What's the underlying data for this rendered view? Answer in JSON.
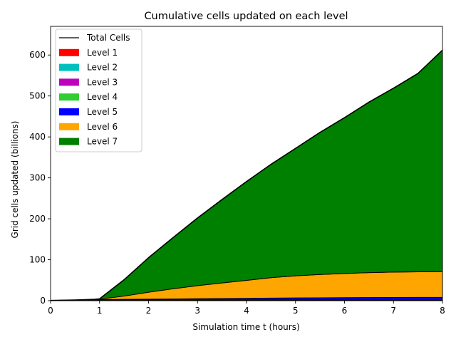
{
  "chart_data": {
    "type": "area",
    "title": "Cumulative cells updated on each level",
    "xlabel": "Simulation time t (hours)",
    "ylabel": "Grid cells updated (billions)",
    "xlim": [
      0,
      8
    ],
    "ylim": [
      0,
      670
    ],
    "xticks": [
      0,
      1,
      2,
      3,
      4,
      5,
      6,
      7,
      8
    ],
    "yticks": [
      0,
      100,
      200,
      300,
      400,
      500,
      600
    ],
    "grid": false,
    "legend_position": "top-left",
    "x": [
      0,
      0.5,
      0.9,
      1,
      1.5,
      2,
      2.5,
      3,
      3.5,
      4,
      4.5,
      5,
      5.5,
      6,
      6.5,
      7,
      7.5,
      8
    ],
    "series": [
      {
        "name": "Level 1",
        "color": "#ff0000",
        "values": [
          0.3,
          0.4,
          0.5,
          0.5,
          0.5,
          0.5,
          0.5,
          0.5,
          0.5,
          0.5,
          0.5,
          0.5,
          0.5,
          0.5,
          0.5,
          0.5,
          0.5,
          0.5
        ]
      },
      {
        "name": "Level 2",
        "color": "#00bfbf",
        "values": [
          0.1,
          0.2,
          0.3,
          0.3,
          0.3,
          0.3,
          0.3,
          0.3,
          0.3,
          0.3,
          0.3,
          0.3,
          0.3,
          0.3,
          0.3,
          0.3,
          0.3,
          0.3
        ]
      },
      {
        "name": "Level 3",
        "color": "#bf00bf",
        "values": [
          0.1,
          0.2,
          0.3,
          0.3,
          0.3,
          0.3,
          0.3,
          0.3,
          0.3,
          0.3,
          0.3,
          0.3,
          0.3,
          0.3,
          0.3,
          0.3,
          0.3,
          0.3
        ]
      },
      {
        "name": "Level 4",
        "color": "#32cd32",
        "values": [
          0.1,
          0.3,
          0.6,
          0.6,
          0.6,
          0.6,
          0.6,
          0.6,
          0.6,
          0.6,
          0.6,
          0.6,
          0.6,
          0.6,
          0.6,
          0.6,
          0.6,
          0.6
        ]
      },
      {
        "name": "Level 5",
        "color": "#0000ff",
        "values": [
          0,
          0.2,
          0.6,
          1.0,
          1.5,
          2.0,
          2.5,
          3.0,
          3.5,
          4.0,
          4.5,
          5.0,
          5.3,
          5.6,
          5.9,
          6.1,
          6.3,
          6.5
        ]
      },
      {
        "name": "Level 6",
        "color": "#ffa500",
        "values": [
          0,
          0.2,
          0.7,
          1.3,
          8,
          17,
          25,
          32,
          38,
          44,
          50,
          54,
          57,
          59,
          61,
          62,
          62.5,
          63
        ]
      },
      {
        "name": "Level 7",
        "color": "#008000",
        "values": [
          0,
          0.1,
          0.3,
          0.5,
          40,
          84,
          125,
          165,
          204,
          241,
          277,
          311,
          347,
          381,
          416,
          449,
          484,
          541
        ]
      }
    ],
    "total": {
      "name": "Total Cells",
      "color": "#000000",
      "values": [
        0.6,
        1.6,
        3.3,
        4.5,
        51,
        105,
        154,
        202,
        247,
        291,
        333,
        372,
        411,
        447,
        485,
        519,
        555,
        612
      ]
    }
  }
}
